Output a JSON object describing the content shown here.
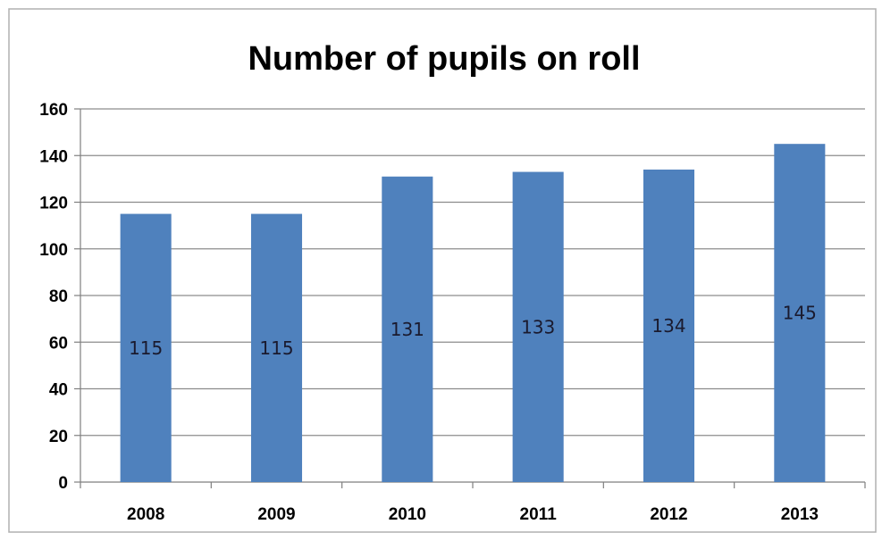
{
  "chart_data": {
    "type": "bar",
    "title": "Number of pupils on roll",
    "xlabel": "",
    "ylabel": "",
    "categories": [
      "2008",
      "2009",
      "2010",
      "2011",
      "2012",
      "2013"
    ],
    "values": [
      115,
      115,
      131,
      133,
      134,
      145
    ],
    "data_labels": [
      "115",
      "115",
      "131",
      "133",
      "134",
      "145"
    ],
    "ylim": [
      0,
      160
    ],
    "yticks": [
      "0",
      "20",
      "40",
      "60",
      "80",
      "100",
      "120",
      "140",
      "160"
    ],
    "grid": true,
    "legend": "none",
    "colors": {
      "bar": "#4f81bd",
      "grid": "#8c8c8c",
      "axis": "#7f7f7f",
      "border": "#b0b0b0"
    }
  }
}
